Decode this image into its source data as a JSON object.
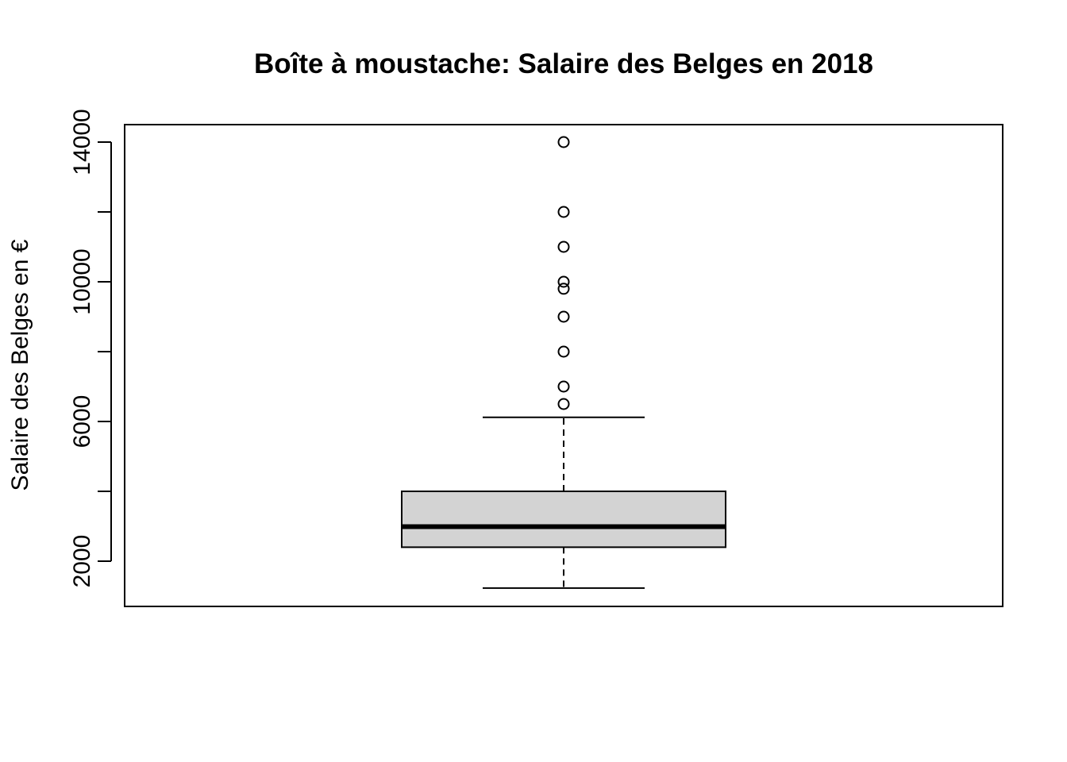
{
  "chart_data": {
    "type": "boxplot",
    "title": "Boîte à moustache: Salaire des Belges en 2018",
    "xlabel": "",
    "ylabel": "Salaire des Belges en €",
    "ylim": [
      600,
      14500
    ],
    "yticks": [
      2000,
      4000,
      6000,
      8000,
      10000,
      12000,
      14000
    ],
    "ytick_labels": [
      "2000",
      "",
      "6000",
      "",
      "10000",
      "",
      "14000"
    ],
    "box": {
      "whisker_low": 1230,
      "q1": 2400,
      "median": 2990,
      "q3": 4000,
      "whisker_high": 6120
    },
    "outliers": [
      6500,
      7000,
      8000,
      9000,
      9800,
      10000,
      11000,
      12000,
      14000
    ],
    "box_fill": "#d3d3d3",
    "grid": false,
    "legend": "none"
  }
}
